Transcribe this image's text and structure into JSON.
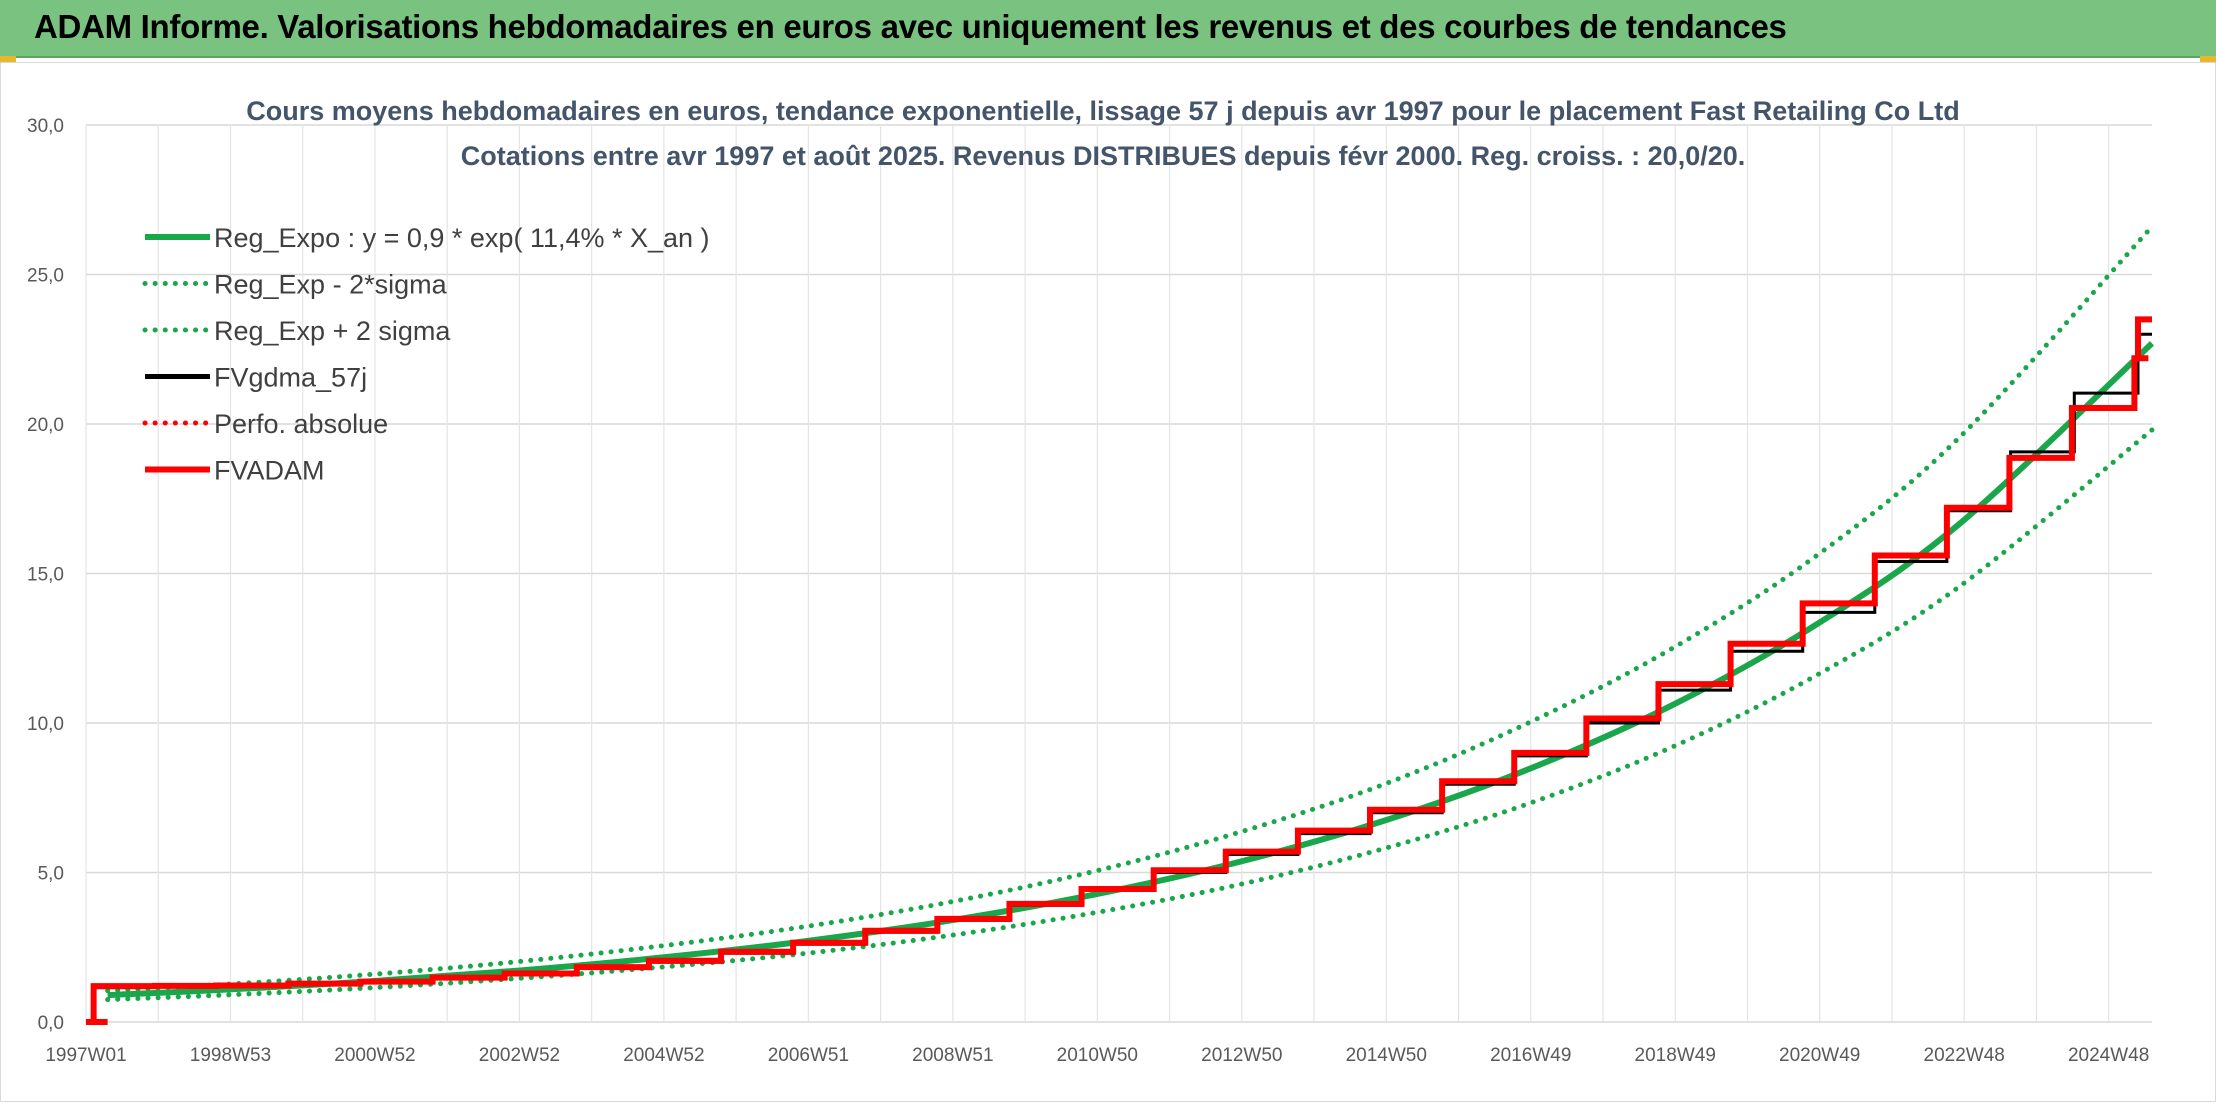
{
  "header": {
    "title": "ADAM Informe. Valorisations hebdomadaires en euros avec uniquement les revenus et des courbes de tendances"
  },
  "colors": {
    "header_bg": "#7ac27f",
    "trend_green": "#1aa64a",
    "black": "#000000",
    "red": "#ff0000"
  },
  "chart_data": {
    "type": "line",
    "title": "Cours moyens hebdomadaires en euros, tendance exponentielle, lissage 57 j depuis avr 1997 pour le placement Fast Retailing Co Ltd",
    "subtitle": "Cotations entre avr 1997 et août 2025. Revenus DISTRIBUES depuis févr 2000. Reg. croiss. : 20,0/20.",
    "xlabel": "",
    "ylabel": "",
    "ylim": [
      0,
      30
    ],
    "y_ticks": [
      "0,0",
      "5,0",
      "10,0",
      "15,0",
      "20,0",
      "25,0",
      "30,0"
    ],
    "x_ticks": [
      "1997W01",
      "1998W53",
      "2000W52",
      "2002W52",
      "2004W52",
      "2006W51",
      "2008W51",
      "2010W50",
      "2012W50",
      "2014W50",
      "2016W49",
      "2018W49",
      "2020W49",
      "2022W48",
      "2024W48"
    ],
    "x_range_years": [
      1997.0,
      2025.65
    ],
    "grid": true,
    "legend_position": "top-left",
    "series": [
      {
        "name": "Reg_Expo : y = 0,9 * exp( 11,4% *  X_an )",
        "style": "solid-thick",
        "color": "#1aa64a",
        "x": [
          1997.3,
          1999,
          2001,
          2003,
          2005,
          2007,
          2009,
          2011,
          2013,
          2015,
          2017,
          2019,
          2021,
          2023,
          2025.65
        ],
        "values": [
          0.9,
          1.09,
          1.37,
          1.72,
          2.16,
          2.71,
          3.4,
          4.27,
          5.36,
          6.73,
          8.45,
          10.6,
          13.3,
          16.7,
          22.7
        ]
      },
      {
        "name": "Reg_Exp - 2*sigma",
        "style": "dotted",
        "color": "#1aa64a",
        "x": [
          1997.3,
          1999,
          2001,
          2003,
          2005,
          2007,
          2009,
          2011,
          2013,
          2015,
          2017,
          2019,
          2021,
          2023,
          2025.65
        ],
        "values": [
          0.75,
          0.91,
          1.15,
          1.46,
          1.84,
          2.3,
          2.9,
          3.66,
          4.6,
          5.8,
          7.3,
          9.2,
          11.6,
          14.6,
          19.8
        ]
      },
      {
        "name": "Reg_Exp + 2 sigma",
        "style": "dotted",
        "color": "#1aa64a",
        "x": [
          1997.3,
          1999,
          2001,
          2003,
          2005,
          2007,
          2009,
          2011,
          2013,
          2015,
          2017,
          2019,
          2021,
          2023,
          2025.65
        ],
        "values": [
          1.05,
          1.27,
          1.6,
          2.02,
          2.55,
          3.2,
          4.02,
          5.05,
          6.35,
          7.95,
          10.0,
          12.5,
          15.6,
          19.6,
          26.6
        ]
      },
      {
        "name": "FVgdma_57j",
        "style": "solid",
        "color": "#000000",
        "x": [
          1997.0,
          1997.3,
          1999,
          2001,
          2003,
          2005,
          2007,
          2009,
          2011,
          2013,
          2015,
          2017,
          2019,
          2021,
          2023,
          2025.65
        ],
        "values": [
          0.0,
          1.15,
          1.2,
          1.35,
          1.6,
          2.0,
          2.6,
          3.4,
          4.4,
          5.6,
          7.0,
          8.9,
          11.1,
          13.7,
          17.1,
          23.0
        ]
      },
      {
        "name": "Perfo. absolue",
        "style": "dotted",
        "color": "#ff0000",
        "x": [],
        "values": []
      },
      {
        "name": "FVADAM",
        "style": "solid-thick",
        "color": "#ff0000",
        "x": [
          1997.0,
          1997.3,
          1997.3,
          1999,
          2001,
          2003,
          2005,
          2007,
          2009,
          2011,
          2013,
          2015,
          2017,
          2019,
          2021,
          2023,
          2025.6,
          2025.65
        ],
        "values": [
          0.0,
          0.0,
          1.2,
          1.22,
          1.35,
          1.62,
          2.05,
          2.65,
          3.45,
          4.45,
          5.7,
          7.1,
          9.0,
          11.3,
          14.0,
          17.2,
          22.2,
          23.5
        ]
      }
    ]
  }
}
